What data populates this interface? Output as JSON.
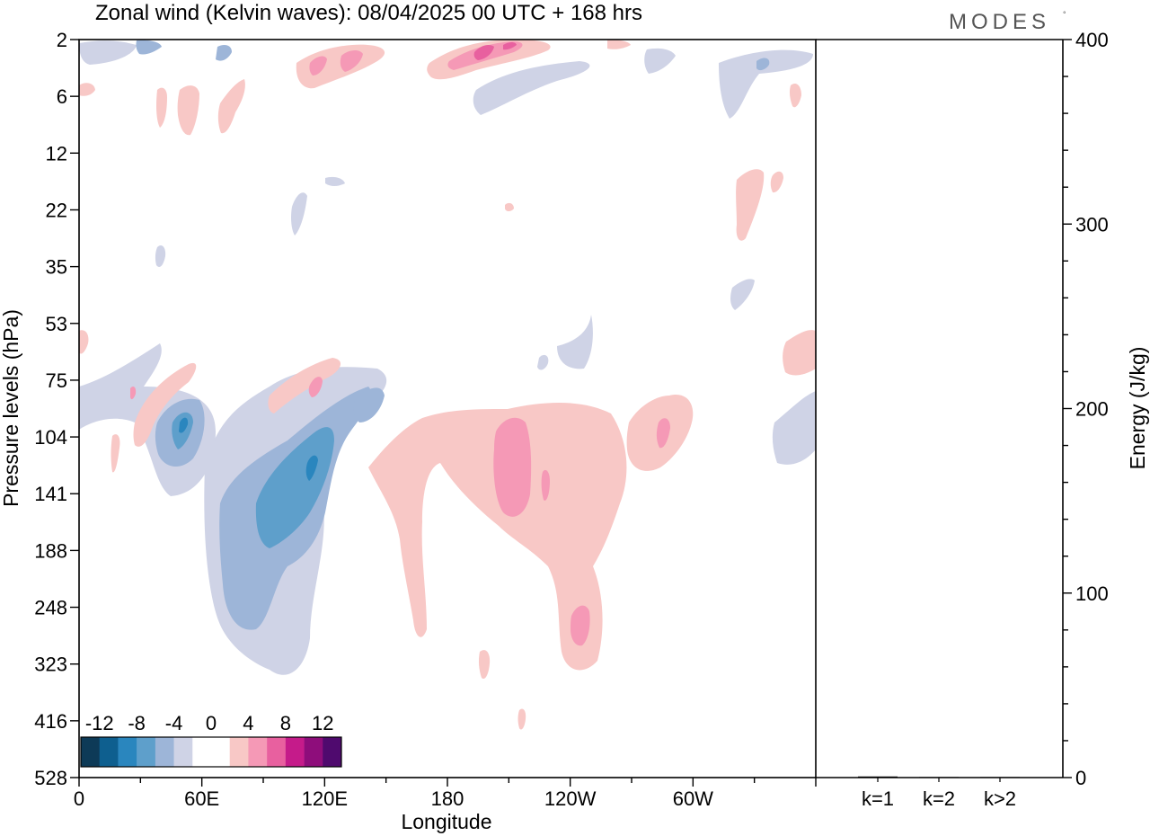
{
  "title": "Zonal wind (Kelvin waves):  08/04/2025  00 UTC  + 168 hrs",
  "brand": "MODES",
  "brand_mark": "°",
  "chart_data": [
    {
      "type": "heatmap",
      "title": "Zonal wind (Kelvin waves):  08/04/2025  00 UTC  + 168 hrs",
      "xlabel": "Longitude",
      "ylabel": "Pressure levels (hPa)",
      "x_ticks": [
        "0",
        "60E",
        "120E",
        "180",
        "120W",
        "60W"
      ],
      "y_ticks": [
        "2",
        "6",
        "12",
        "22",
        "35",
        "53",
        "75",
        "104",
        "141",
        "188",
        "248",
        "323",
        "416",
        "528"
      ],
      "colorbar": {
        "labels": [
          "-12",
          "-8",
          "-4",
          "0",
          "4",
          "8",
          "12"
        ],
        "colors": [
          "#0d3a57",
          "#0e5f8f",
          "#2a86be",
          "#5e9fcb",
          "#9db5d8",
          "#cfd3e6",
          "#ffffff",
          "#ffffff",
          "#f8c8c6",
          "#f599b6",
          "#e8609f",
          "#c51b8a",
          "#8e0d7b",
          "#4f0a6e"
        ]
      },
      "features": [
        {
          "sign": "negative",
          "max_level": 4,
          "lon": 110,
          "p": 130
        },
        {
          "sign": "negative",
          "max_level": 3,
          "lon": 53,
          "p": 100
        },
        {
          "sign": "positive",
          "max_level": 2,
          "lon": 210,
          "p": 125
        },
        {
          "sign": "positive",
          "max_level": 2,
          "lon": 237,
          "p": 270
        },
        {
          "sign": "positive",
          "max_level": 2,
          "lon": 283,
          "p": 105
        },
        {
          "sign": "positive",
          "max_level": 3,
          "lon": 200,
          "p": 3
        },
        {
          "sign": "positive",
          "max_level": 2,
          "lon": 113,
          "p": 80
        }
      ]
    },
    {
      "type": "bar",
      "categories": [
        "k=1",
        "k=2",
        "k>2"
      ],
      "values": [
        0.6,
        0.3,
        0.3
      ],
      "ylabel": "Energy (J/kg)",
      "ylim": [
        0,
        400
      ],
      "y_ticks": [
        "0",
        "100",
        "200",
        "300",
        "400"
      ]
    }
  ]
}
